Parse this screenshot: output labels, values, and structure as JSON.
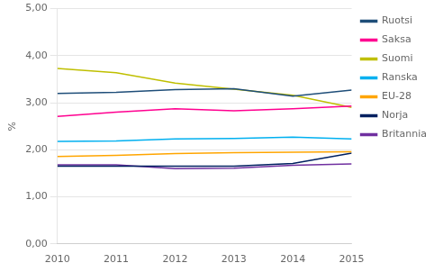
{
  "chart_data": {
    "type": "line",
    "ylabel": "%",
    "x": [
      2010,
      2011,
      2012,
      2013,
      2014,
      2015
    ],
    "series": [
      {
        "name": "Ruotsi",
        "color": "#1F4E79",
        "values": [
          3.2,
          3.22,
          3.28,
          3.3,
          3.14,
          3.27
        ]
      },
      {
        "name": "Saksa",
        "color": "#FF0090",
        "values": [
          2.71,
          2.8,
          2.87,
          2.83,
          2.87,
          2.93
        ]
      },
      {
        "name": "Suomi",
        "color": "#BFBF00",
        "values": [
          3.73,
          3.64,
          3.42,
          3.29,
          3.16,
          2.9
        ]
      },
      {
        "name": "Ranska",
        "color": "#00B0F0",
        "values": [
          2.18,
          2.19,
          2.23,
          2.24,
          2.27,
          2.23
        ]
      },
      {
        "name": "EU-28",
        "color": "#FFA500",
        "values": [
          1.86,
          1.88,
          1.92,
          1.94,
          1.95,
          1.96
        ]
      },
      {
        "name": "Norja",
        "color": "#002060",
        "values": [
          1.65,
          1.65,
          1.65,
          1.65,
          1.71,
          1.93
        ]
      },
      {
        "name": "Britannia",
        "color": "#7030A0",
        "values": [
          1.68,
          1.68,
          1.6,
          1.61,
          1.67,
          1.7
        ]
      }
    ],
    "xlim": [
      2010,
      2015
    ],
    "xticks": [
      2010,
      2011,
      2012,
      2013,
      2014,
      2015
    ],
    "ylim": [
      0.0,
      5.0
    ],
    "yticks": [
      {
        "value": 0.0,
        "label": "0,00"
      },
      {
        "value": 1.0,
        "label": "1,00"
      },
      {
        "value": 2.0,
        "label": "2,00"
      },
      {
        "value": 3.0,
        "label": "3,00"
      },
      {
        "value": 4.0,
        "label": "4,00"
      },
      {
        "value": 5.0,
        "label": "5,00"
      }
    ],
    "grid": "y",
    "legend": "right"
  }
}
